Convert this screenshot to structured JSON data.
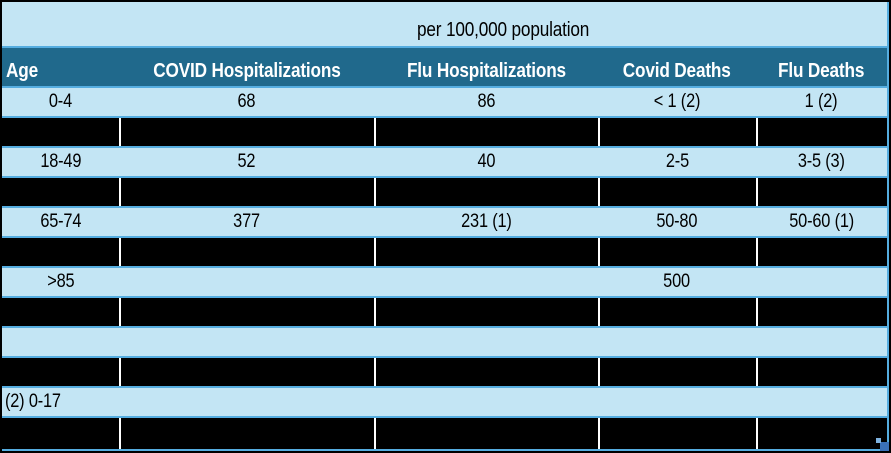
{
  "banner": {
    "title": "per 100,000 population"
  },
  "colors": {
    "header_bg": "#20698C",
    "row_bg": "#C3E5F4",
    "redacted_bg": "#000000",
    "grid_line": "#55ADE0",
    "cell_separator": "#FFFFFF",
    "header_text": "#FFFFFF",
    "body_text": "#000000",
    "frame_border": "#000000",
    "handle_dark": "#3A70B8",
    "handle_light": "#7FB3E0"
  },
  "table": {
    "columns": [
      "Age",
      "COVID Hospitalizations",
      "Flu Hospitalizations",
      "Covid Deaths",
      "Flu Deaths"
    ],
    "rows": [
      {
        "kind": "data",
        "cells": [
          "0-4",
          "68",
          "86",
          "< 1 (2)",
          "1 (2)"
        ]
      },
      {
        "kind": "redacted",
        "cells": [
          "",
          "",
          "",
          "",
          ""
        ]
      },
      {
        "kind": "data",
        "cells": [
          "18-49",
          "52",
          "40",
          "2-5",
          "3-5 (3)"
        ]
      },
      {
        "kind": "redacted",
        "cells": [
          "",
          "",
          "",
          "",
          ""
        ]
      },
      {
        "kind": "data",
        "cells": [
          "65-74",
          "377",
          "231 (1)",
          "50-80",
          "50-60 (1)"
        ]
      },
      {
        "kind": "redacted",
        "cells": [
          "",
          "",
          "",
          "",
          ""
        ]
      },
      {
        "kind": "data",
        "cells": [
          ">85",
          "",
          "",
          "500",
          ""
        ]
      },
      {
        "kind": "redacted",
        "cells": [
          "",
          "",
          "",
          "",
          ""
        ]
      },
      {
        "kind": "empty",
        "cells": [
          "",
          "",
          "",
          "",
          ""
        ]
      },
      {
        "kind": "redacted",
        "cells": [
          "",
          "",
          "",
          "",
          ""
        ]
      },
      {
        "kind": "footnote",
        "text": "(2) 0-17"
      },
      {
        "kind": "redacted",
        "cells": [
          "",
          "",
          "",
          "",
          ""
        ]
      }
    ]
  }
}
